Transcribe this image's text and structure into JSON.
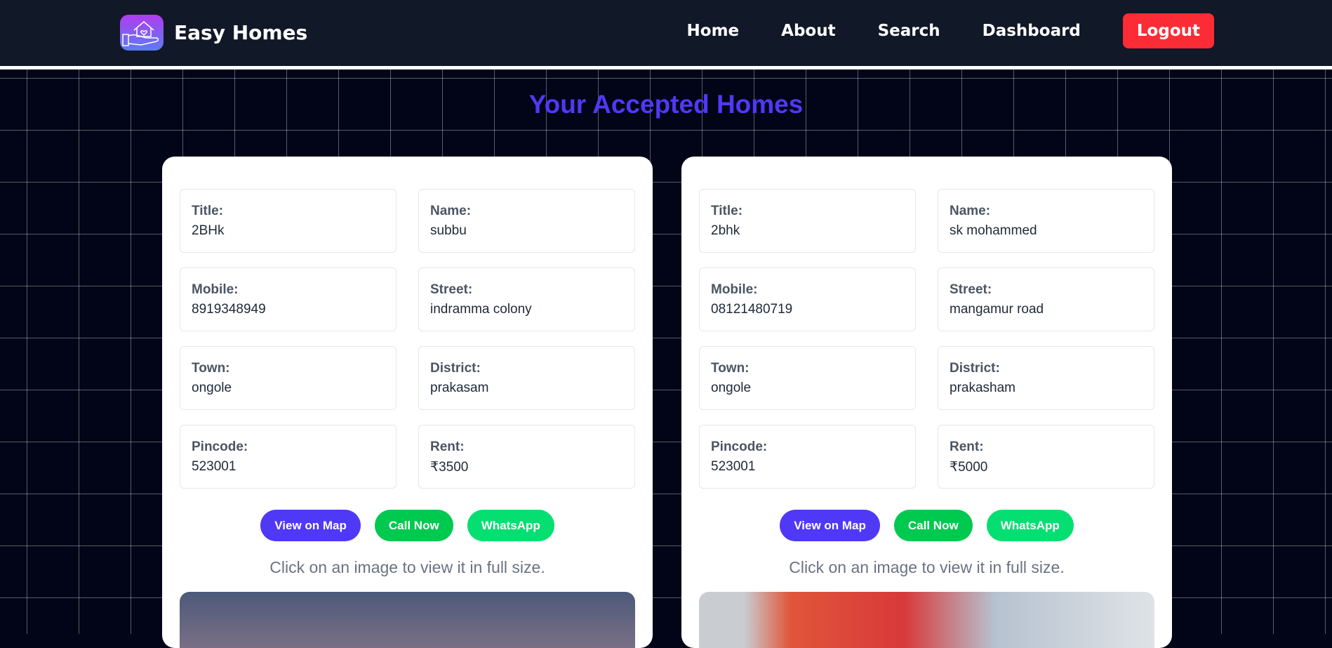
{
  "nav": {
    "brand": "Easy Homes",
    "links": [
      "Home",
      "About",
      "Search",
      "Dashboard"
    ],
    "logout": "Logout"
  },
  "page_title": "Your Accepted Homes",
  "labels": {
    "title": "Title:",
    "name": "Name:",
    "mobile": "Mobile:",
    "street": "Street:",
    "town": "Town:",
    "district": "District:",
    "pincode": "Pincode:",
    "rent": "Rent:"
  },
  "buttons": {
    "map": "View on Map",
    "call": "Call Now",
    "whatsapp": "WhatsApp"
  },
  "hint": "Click on an image to view it in full size.",
  "homes": [
    {
      "title": "2BHk",
      "name": "subbu",
      "mobile": "8919348949",
      "street": "indramma colony",
      "town": "ongole",
      "district": "prakasam",
      "pincode": "523001",
      "rent": "₹3500"
    },
    {
      "title": "2bhk",
      "name": "sk mohammed",
      "mobile": "08121480719",
      "street": "mangamur road",
      "town": "ongole",
      "district": "prakasham",
      "pincode": "523001",
      "rent": "₹5000"
    }
  ]
}
